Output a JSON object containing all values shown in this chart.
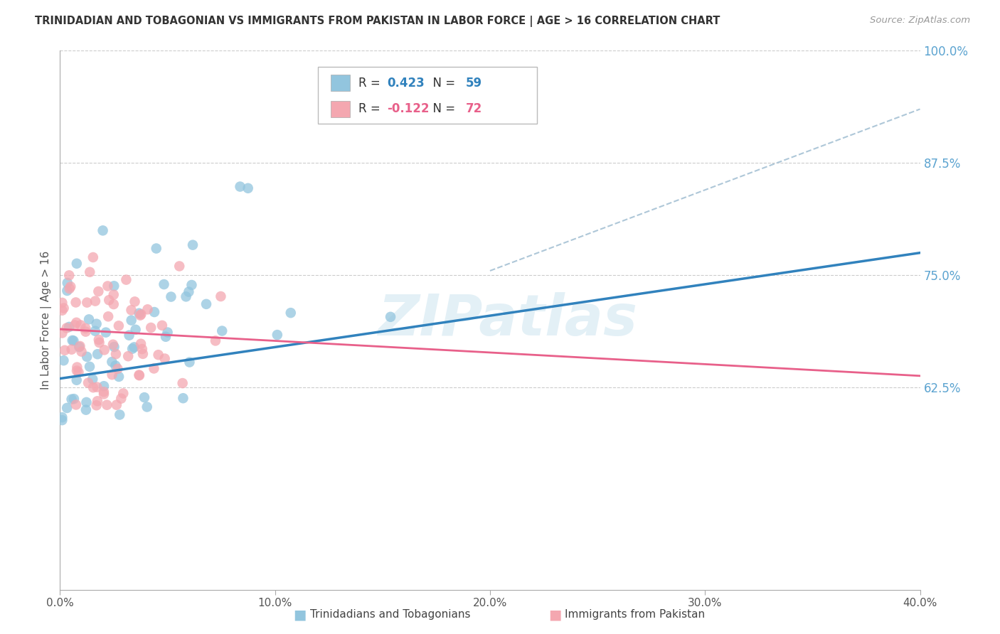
{
  "title": "TRINIDADIAN AND TOBAGONIAN VS IMMIGRANTS FROM PAKISTAN IN LABOR FORCE | AGE > 16 CORRELATION CHART",
  "source": "Source: ZipAtlas.com",
  "ylabel": "In Labor Force | Age > 16",
  "xlim": [
    0.0,
    0.4
  ],
  "ylim": [
    0.4,
    1.0
  ],
  "yticks": [
    0.625,
    0.75,
    0.875,
    1.0
  ],
  "ytick_labels": [
    "62.5%",
    "75.0%",
    "87.5%",
    "100.0%"
  ],
  "xticks": [
    0.0,
    0.1,
    0.2,
    0.3,
    0.4
  ],
  "xtick_labels": [
    "0.0%",
    "10.0%",
    "20.0%",
    "30.0%",
    "40.0%"
  ],
  "blue_R": 0.423,
  "blue_N": 59,
  "pink_R": -0.122,
  "pink_N": 72,
  "blue_color": "#92c5de",
  "pink_color": "#f4a7b0",
  "blue_line_color": "#3182bd",
  "pink_line_color": "#e8608a",
  "dashed_line_color": "#aec7d8",
  "watermark": "ZIPatlas",
  "legend_label_blue": "Trinidadians and Tobagonians",
  "legend_label_pink": "Immigrants from Pakistan",
  "background_color": "#ffffff",
  "grid_color": "#cccccc",
  "title_color": "#333333",
  "right_tick_color": "#5ba3d0",
  "blue_line_x0": 0.0,
  "blue_line_y0": 0.635,
  "blue_line_x1": 0.4,
  "blue_line_y1": 0.775,
  "pink_line_x0": 0.0,
  "pink_line_y0": 0.69,
  "pink_line_x1": 0.4,
  "pink_line_y1": 0.638,
  "dash_line_x0": 0.2,
  "dash_line_y0": 0.755,
  "dash_line_x1": 0.4,
  "dash_line_y1": 0.935
}
